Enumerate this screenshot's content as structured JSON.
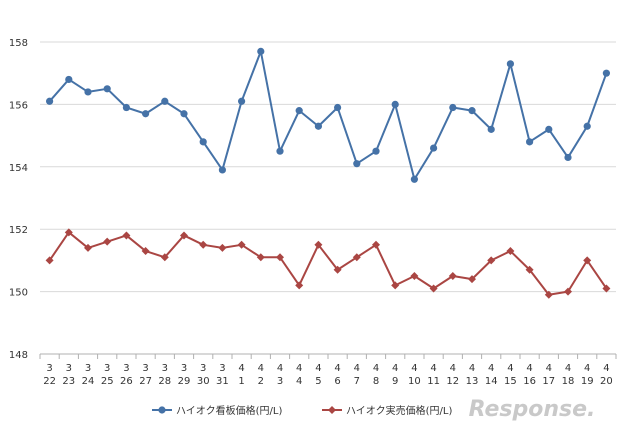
{
  "chart_data": {
    "type": "line",
    "title": "",
    "xlabel": "",
    "ylabel": "",
    "ylim": [
      148,
      158
    ],
    "yticks": [
      "148",
      "150",
      "152",
      "154",
      "156",
      "158"
    ],
    "grid": true,
    "legend_position": "bottom",
    "categories": [
      {
        "month": "3",
        "day": "22"
      },
      {
        "month": "3",
        "day": "23"
      },
      {
        "month": "3",
        "day": "24"
      },
      {
        "month": "3",
        "day": "25"
      },
      {
        "month": "3",
        "day": "26"
      },
      {
        "month": "3",
        "day": "27"
      },
      {
        "month": "3",
        "day": "28"
      },
      {
        "month": "3",
        "day": "29"
      },
      {
        "month": "3",
        "day": "30"
      },
      {
        "month": "3",
        "day": "31"
      },
      {
        "month": "4",
        "day": "1"
      },
      {
        "month": "4",
        "day": "2"
      },
      {
        "month": "4",
        "day": "3"
      },
      {
        "month": "4",
        "day": "4"
      },
      {
        "month": "4",
        "day": "5"
      },
      {
        "month": "4",
        "day": "6"
      },
      {
        "month": "4",
        "day": "7"
      },
      {
        "month": "4",
        "day": "8"
      },
      {
        "month": "4",
        "day": "9"
      },
      {
        "month": "4",
        "day": "10"
      },
      {
        "month": "4",
        "day": "11"
      },
      {
        "month": "4",
        "day": "12"
      },
      {
        "month": "4",
        "day": "13"
      },
      {
        "month": "4",
        "day": "14"
      },
      {
        "month": "4",
        "day": "15"
      },
      {
        "month": "4",
        "day": "16"
      },
      {
        "month": "4",
        "day": "17"
      },
      {
        "month": "4",
        "day": "18"
      },
      {
        "month": "4",
        "day": "19"
      },
      {
        "month": "4",
        "day": "20"
      }
    ],
    "series": [
      {
        "name": "ハイオク看板価格(円/L)",
        "color": "#4572a7",
        "marker": "circle",
        "values": [
          156.1,
          156.8,
          156.4,
          156.5,
          155.9,
          155.7,
          156.1,
          155.7,
          154.8,
          153.9,
          156.1,
          157.7,
          154.5,
          155.8,
          155.3,
          155.9,
          154.1,
          154.5,
          156.0,
          153.6,
          154.6,
          155.9,
          155.8,
          155.2,
          157.3,
          154.8,
          155.2,
          154.3,
          155.3,
          157.0
        ]
      },
      {
        "name": "ハイオク実売価格(円/L)",
        "color": "#aa4643",
        "marker": "diamond",
        "values": [
          151.0,
          151.9,
          151.4,
          151.6,
          151.8,
          151.3,
          151.1,
          151.8,
          151.5,
          151.4,
          151.5,
          151.1,
          151.1,
          150.2,
          151.5,
          150.7,
          151.1,
          151.5,
          150.2,
          150.5,
          150.1,
          150.5,
          150.4,
          151.0,
          151.3,
          150.7,
          149.9,
          150.0,
          151.0,
          150.1
        ]
      }
    ]
  },
  "watermark": {
    "text": "Response."
  }
}
